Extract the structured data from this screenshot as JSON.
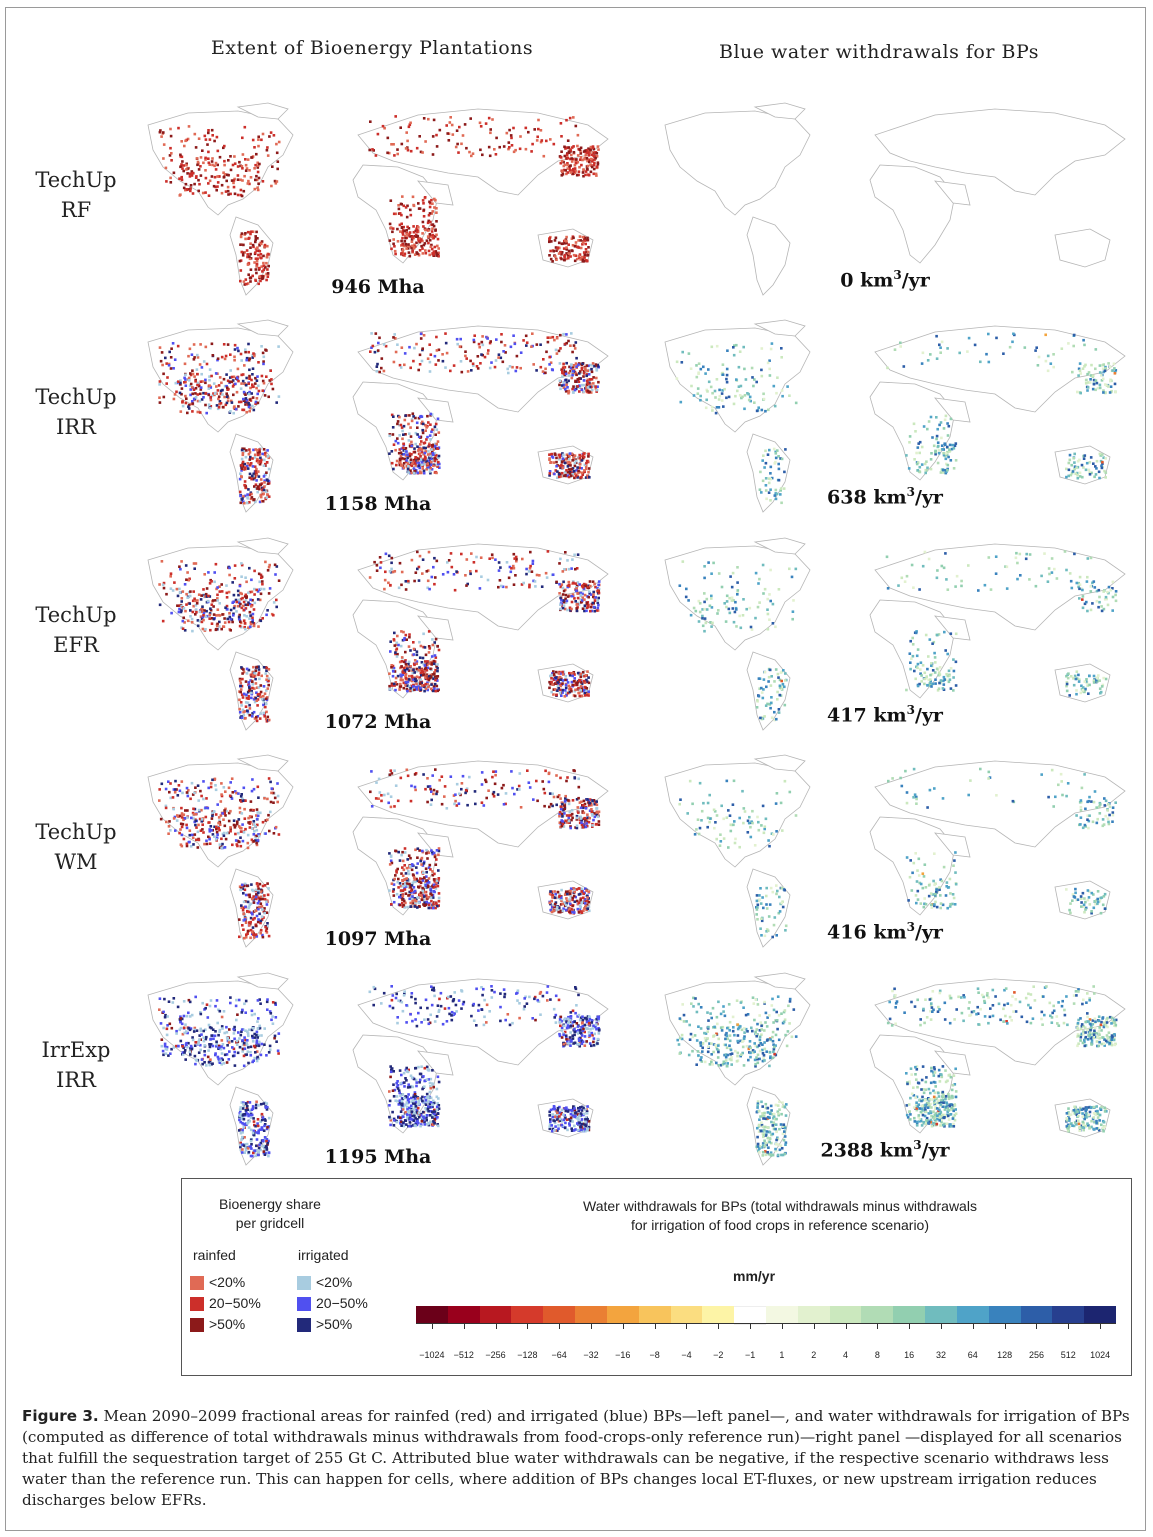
{
  "column_titles": {
    "left": "Extent of Bioenergy Plantations",
    "right": "Blue water withdrawals for BPs"
  },
  "rows": [
    {
      "label_line1": "TechUp",
      "label_line2": "RF",
      "area": "946 Mha",
      "water_num": "0",
      "water_unit_pre": "km",
      "water_exp": "3",
      "water_unit_post": "/yr",
      "irr_density": 0.0,
      "rain_density": 0.65,
      "water_density": 0.0
    },
    {
      "label_line1": "TechUp",
      "label_line2": "IRR",
      "area": "1158 Mha",
      "water_num": "638",
      "water_unit_pre": "km",
      "water_exp": "3",
      "water_unit_post": "/yr",
      "irr_density": 0.35,
      "rain_density": 0.55,
      "water_density": 0.3
    },
    {
      "label_line1": "TechUp",
      "label_line2": "EFR",
      "area": "1072 Mha",
      "water_num": "417",
      "water_unit_pre": "km",
      "water_exp": "3",
      "water_unit_post": "/yr",
      "irr_density": 0.35,
      "rain_density": 0.5,
      "water_density": 0.28
    },
    {
      "label_line1": "TechUp",
      "label_line2": "WM",
      "area": "1097 Mha",
      "water_num": "416",
      "water_unit_pre": "km",
      "water_exp": "3",
      "water_unit_post": "/yr",
      "irr_density": 0.35,
      "rain_density": 0.5,
      "water_density": 0.28
    },
    {
      "label_line1": "IrrExp",
      "label_line2": "IRR",
      "area": "1195 Mha",
      "water_num": "2388",
      "water_unit_pre": "km",
      "water_exp": "3",
      "water_unit_post": "/yr",
      "irr_density": 0.85,
      "rain_density": 0.1,
      "water_density": 0.8
    }
  ],
  "legend": {
    "share_title_1": "Bioenergy share",
    "share_title_2": "per gridcell",
    "rainfed_label": "rainfed",
    "irrigated_label": "irrigated",
    "classes": [
      "<20%",
      "20−50%",
      ">50%"
    ],
    "rainfed_colors": [
      "#e06a55",
      "#cc2f2a",
      "#8c1a1a"
    ],
    "irrigated_colors": [
      "#a8cce0",
      "#5050f0",
      "#22297a"
    ],
    "water_title_1": "Water withdrawals for BPs (total withdrawals minus withdrawals",
    "water_title_2": "for irrigation of food crops in reference scenario)",
    "unit": "mm/yr",
    "scale_colors": [
      "#6b0019",
      "#99001c",
      "#b81820",
      "#d53a2b",
      "#e05a2c",
      "#ea7f33",
      "#f3a43e",
      "#f8c45c",
      "#fbdd80",
      "#fdf4a6",
      "#ffffff",
      "#f3f8e2",
      "#e2f1cf",
      "#cbe8be",
      "#b1dcb5",
      "#92cfb0",
      "#70bcbe",
      "#4fa3c8",
      "#3982bd",
      "#2d5ea8",
      "#273f8f",
      "#1c2570"
    ],
    "tick_labels": [
      "−1024",
      "−512",
      "−256",
      "−128",
      "−64",
      "−32",
      "−16",
      "−8",
      "−4",
      "−2",
      "−1",
      "1",
      "2",
      "4",
      "8",
      "16",
      "32",
      "64",
      "128",
      "256",
      "512",
      "1024"
    ]
  },
  "caption": {
    "label": "Figure 3.",
    "text": " Mean 2090–2099 fractional areas for rainfed (red) and irrigated (blue) BPs—left panel—, and water withdrawals for irrigation of BPs (computed as difference of total withdrawals minus withdrawals from food-crops-only reference run)—right panel —displayed for all scenarios that fulfill the sequestration target of 255 Gt C. Attributed blue water withdrawals can be negative, if the respective scenario withdraws less water than the reference run. This can happen for cells, where addition of BPs changes local ET-fluxes, or new upstream irrigation reduces discharges below EFRs."
  }
}
